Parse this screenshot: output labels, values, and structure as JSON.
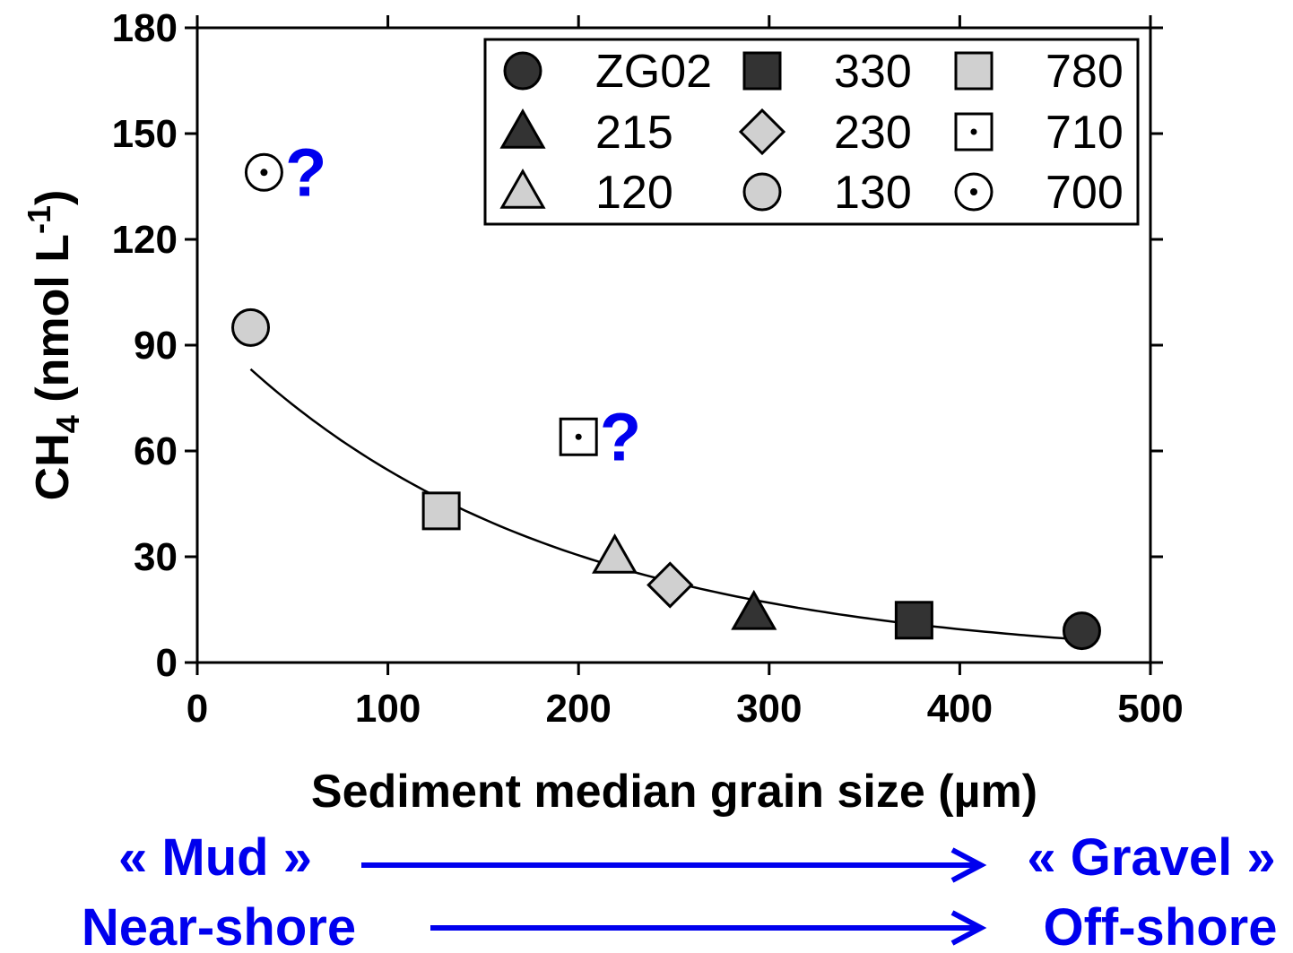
{
  "chart_data": {
    "type": "scatter",
    "xlabel": "Sediment median grain size (µm)",
    "ylabel": {
      "main": "CH",
      "sub": "4",
      "unit_start": " (nmol L",
      "sup": "-1",
      "unit_end": ")"
    },
    "xlim": [
      0,
      500
    ],
    "ylim": [
      0,
      180
    ],
    "xticks": [
      0,
      100,
      200,
      300,
      400,
      500
    ],
    "yticks": [
      0,
      30,
      60,
      90,
      120,
      150,
      180
    ],
    "grid": false,
    "legend_position": "top-right",
    "series": [
      {
        "name": "ZG02",
        "marker": "circle",
        "fill": "#333333",
        "points": [
          {
            "x": 464,
            "y": 9
          }
        ]
      },
      {
        "name": "330",
        "marker": "square",
        "fill": "#333333",
        "points": [
          {
            "x": 376,
            "y": 12
          }
        ]
      },
      {
        "name": "780",
        "marker": "square",
        "fill": "#d0d0d0",
        "points": [
          {
            "x": 128,
            "y": 43
          }
        ]
      },
      {
        "name": "215",
        "marker": "triangle",
        "fill": "#333333",
        "points": [
          {
            "x": 292,
            "y": 14
          }
        ]
      },
      {
        "name": "230",
        "marker": "diamond",
        "fill": "#d0d0d0",
        "points": [
          {
            "x": 248,
            "y": 22
          }
        ]
      },
      {
        "name": "710",
        "marker": "dotted-square",
        "fill": "#ffffff",
        "points": [
          {
            "x": 200,
            "y": 64
          }
        ]
      },
      {
        "name": "120",
        "marker": "triangle",
        "fill": "#d0d0d0",
        "points": [
          {
            "x": 219,
            "y": 30
          }
        ]
      },
      {
        "name": "130",
        "marker": "circle",
        "fill": "#d0d0d0",
        "points": [
          {
            "x": 28,
            "y": 95
          }
        ]
      },
      {
        "name": "700",
        "marker": "dotted-circle",
        "fill": "#ffffff",
        "points": [
          {
            "x": 35,
            "y": 139
          }
        ]
      }
    ],
    "fit_curve": {
      "type": "exponential",
      "a": 98,
      "b": -0.00585,
      "x_range": [
        28,
        464
      ]
    },
    "annotations": [
      {
        "text": "?",
        "x": 57,
        "y": 139,
        "color": "#0000ee"
      },
      {
        "text": "?",
        "x": 222,
        "y": 64,
        "color": "#0000ee"
      }
    ]
  },
  "footer": {
    "mud_label": "« Mud »",
    "gravel_label": "« Gravel »",
    "nearshore_label": "Near-shore",
    "offshore_label": "Off-shore",
    "arrow_color": "#0000ee"
  }
}
